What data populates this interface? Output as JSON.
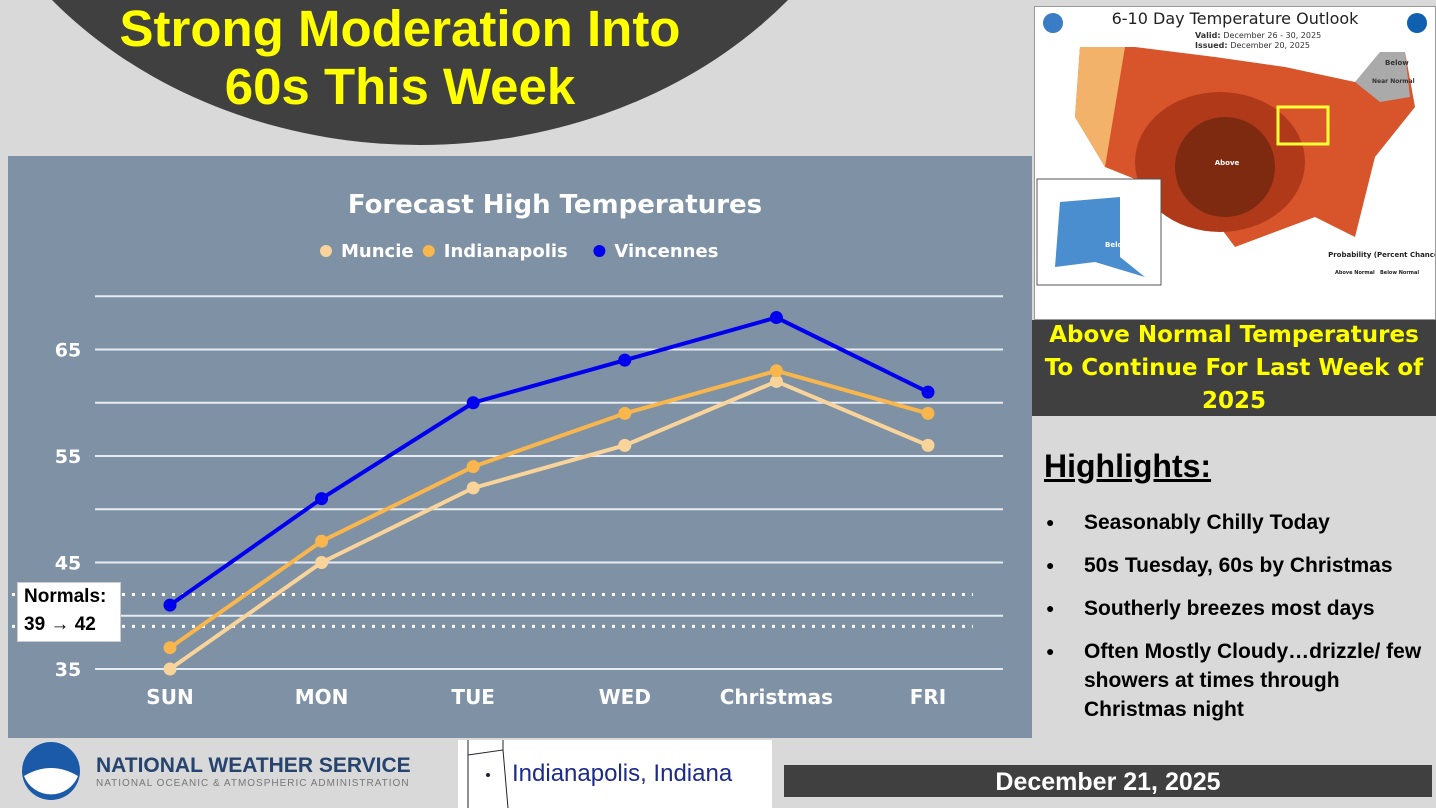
{
  "title": {
    "line1": "Strong Moderation Into",
    "line2": "60s This Week"
  },
  "chart_data": {
    "type": "line",
    "title": "Forecast High Temperatures",
    "categories": [
      "SUN",
      "MON",
      "TUE",
      "WED",
      "Christmas",
      "FRI"
    ],
    "series": [
      {
        "name": "Muncie",
        "color": "#f9d49a",
        "values": [
          35,
          45,
          52,
          56,
          62,
          56
        ]
      },
      {
        "name": "Indianapolis",
        "color": "#f8b64c",
        "values": [
          37,
          47,
          54,
          59,
          63,
          59
        ]
      },
      {
        "name": "Vincennes",
        "color": "#0000ee",
        "values": [
          41,
          51,
          60,
          64,
          68,
          61
        ]
      }
    ],
    "yticks": [
      35,
      45,
      55,
      65
    ],
    "ylim": [
      35,
      70
    ],
    "grid": true,
    "legend": "top",
    "normals": {
      "label": "Normals:",
      "range": "39 → 42",
      "low": 39,
      "high": 42
    }
  },
  "outlook": {
    "title": "6-10 Day Temperature Outlook",
    "valid_label": "Valid:",
    "valid": "December 26 - 30, 2025",
    "issued_label": "Issued:",
    "issued": "December 20, 2025",
    "above": "Above",
    "below": "Below",
    "near_normal": "Near Normal",
    "probability": "Probability (Percent Chance)",
    "above_normal": "Above Normal",
    "below_normal": "Below Normal"
  },
  "outlook_caption": "Above Normal Temperatures To Continue For Last Week of 2025",
  "highlights": {
    "title": "Highlights:",
    "items": [
      "Seasonably Chilly Today",
      "50s Tuesday, 60s by Christmas",
      "Southerly breezes most days",
      "Often Mostly Cloudy…drizzle/ few showers at times through Christmas night"
    ]
  },
  "footer": {
    "agency": "NATIONAL WEATHER SERVICE",
    "subagency": "NATIONAL OCEANIC & ATMOSPHERIC ADMINISTRATION",
    "office": "Indianapolis, Indiana",
    "date": "December 21, 2025"
  }
}
